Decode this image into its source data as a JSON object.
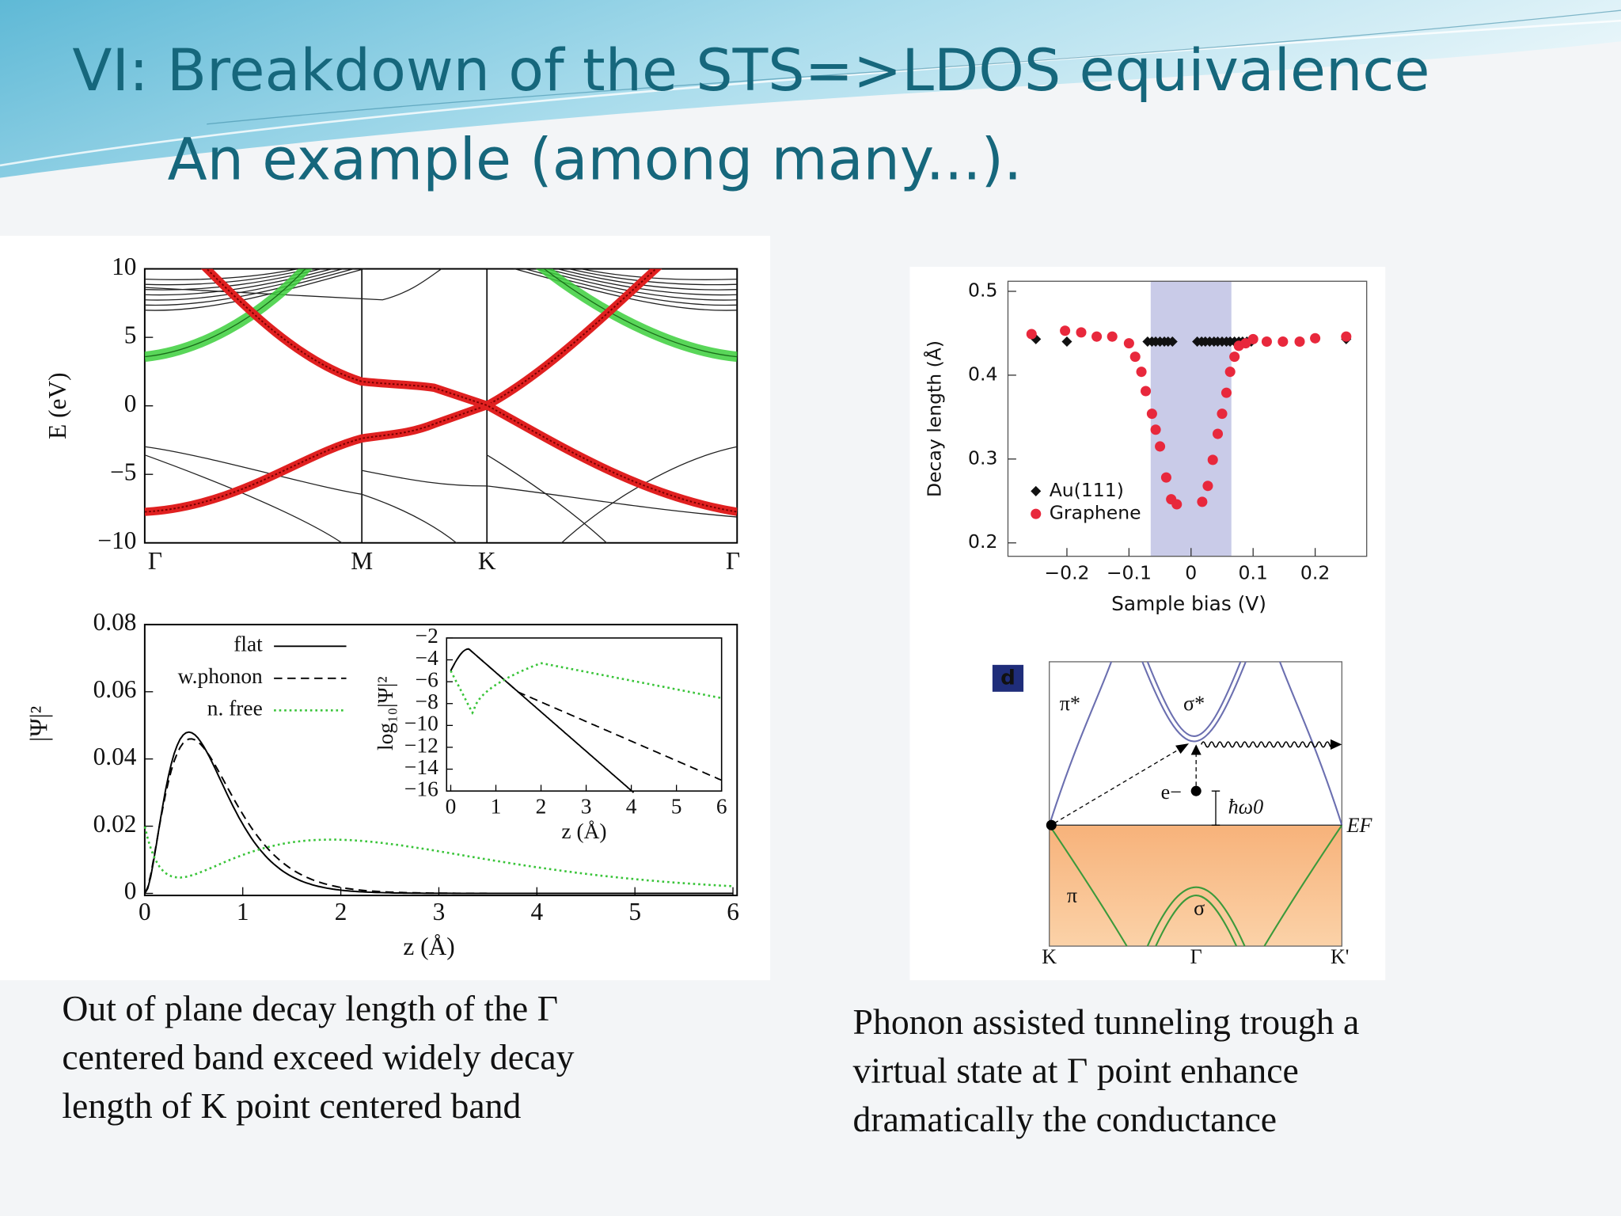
{
  "title": "VI: Breakdown of the STS=>LDOS equivalence",
  "subtitle": "An example (among many...).",
  "band_plot": {
    "ylabel": "E (eV)",
    "ylim": [
      -10,
      10
    ],
    "yticks": [
      10,
      5,
      0,
      {
        "value": -5,
        "label": "−5"
      },
      {
        "value": -10,
        "label": "−10"
      }
    ],
    "kpoints": [
      "Γ",
      "M",
      "K",
      "Γ"
    ]
  },
  "psi_plot": {
    "ylabel": "|Ψ|²",
    "xlabel": "z (Å)",
    "xlim": [
      0,
      6
    ],
    "ylim": [
      0,
      0.08
    ],
    "xticks": [
      0,
      1,
      2,
      3,
      4,
      5,
      6
    ],
    "yticks": [
      0,
      0.02,
      0.04,
      0.06,
      0.08
    ],
    "legend": [
      "flat",
      "w.phonon",
      "n. free"
    ],
    "inset": {
      "ylabel": "log₁₀|Ψ|²",
      "xlabel": "z (Å)",
      "xlim": [
        0,
        6
      ],
      "ylim": [
        -16,
        -2
      ],
      "xticks": [
        0,
        1,
        2,
        3,
        4,
        5,
        6
      ],
      "yticks": [
        {
          "value": -2,
          "label": "−2"
        },
        {
          "value": -4,
          "label": "−4"
        },
        {
          "value": -6,
          "label": "−6"
        },
        {
          "value": -8,
          "label": "−8"
        },
        {
          "value": -10,
          "label": "−10"
        },
        {
          "value": -12,
          "label": "−12"
        },
        {
          "value": -14,
          "label": "−14"
        },
        {
          "value": -16,
          "label": "−16"
        }
      ]
    }
  },
  "decay_chart": {
    "type": "scatter",
    "xlabel": "Sample bias (V)",
    "ylabel": "Decay length (Å)",
    "xlim": [
      -0.295,
      0.283
    ],
    "ylim": [
      0.184,
      0.512
    ],
    "xticks": [
      {
        "value": -0.2,
        "label": "−0.2"
      },
      {
        "value": -0.1,
        "label": "−0.1"
      },
      0,
      0.1,
      0.2
    ],
    "yticks": [
      0.2,
      0.3,
      0.4,
      0.5
    ],
    "shaded_range": [
      -0.065,
      0.065
    ],
    "series": [
      {
        "name": "Au(111)",
        "color": "#111111",
        "x": [
          -0.25,
          -0.2,
          -0.07,
          -0.063,
          -0.057,
          -0.05,
          -0.043,
          -0.037,
          -0.03,
          0.01,
          0.017,
          0.023,
          0.03,
          0.037,
          0.043,
          0.05,
          0.057,
          0.063,
          0.07,
          0.077,
          0.083,
          0.09,
          0.097,
          0.25
        ],
        "values": [
          0.443,
          0.44,
          0.44,
          0.44,
          0.44,
          0.44,
          0.44,
          0.44,
          0.44,
          0.44,
          0.44,
          0.44,
          0.44,
          0.44,
          0.44,
          0.44,
          0.44,
          0.44,
          0.44,
          0.44,
          0.44,
          0.44,
          0.44,
          0.443
        ]
      },
      {
        "name": "Graphene",
        "color": "#e8283c",
        "x": [
          -0.257,
          -0.203,
          -0.177,
          -0.152,
          -0.127,
          -0.1,
          -0.09,
          -0.08,
          -0.073,
          -0.063,
          -0.057,
          -0.05,
          -0.04,
          -0.032,
          -0.023,
          0.018,
          0.027,
          0.035,
          0.043,
          0.05,
          0.057,
          0.063,
          0.07,
          0.077,
          0.088,
          0.1,
          0.122,
          0.148,
          0.175,
          0.2,
          0.25
        ],
        "values": [
          0.449,
          0.453,
          0.451,
          0.446,
          0.446,
          0.438,
          0.422,
          0.404,
          0.381,
          0.354,
          0.335,
          0.315,
          0.278,
          0.252,
          0.246,
          0.249,
          0.268,
          0.299,
          0.33,
          0.354,
          0.379,
          0.404,
          0.422,
          0.435,
          0.438,
          0.443,
          0.44,
          0.44,
          0.44,
          0.444,
          0.446
        ]
      }
    ]
  },
  "diagram": {
    "panel": "d",
    "pi_star": "π*",
    "sigma_star": "σ*",
    "electron": "e−",
    "phonon": "ħω0",
    "fermi": "EF",
    "pi": "π",
    "sigma": "σ",
    "k_left": "K",
    "gamma": "Γ",
    "k_right": "K'"
  },
  "captions": [
    [
      "Out of plane decay length of the Γ",
      "centered band exceed widely decay",
      "length of K point centered band"
    ],
    [
      "Phonon assisted tunneling trough a",
      "virtual state at Γ  point enhance",
      "dramatically the conductance"
    ]
  ]
}
